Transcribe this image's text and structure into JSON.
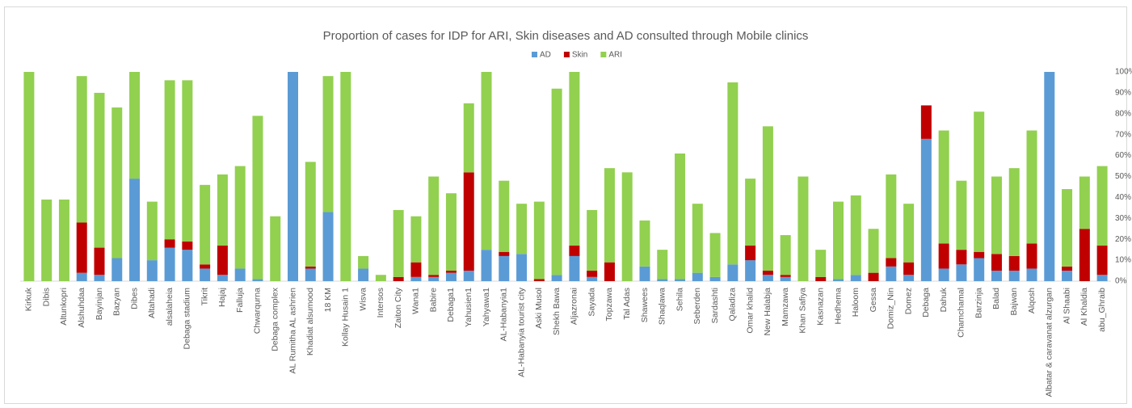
{
  "chart_data": {
    "type": "stacked_bar",
    "title": "Proportion of cases for IDP for ARI, Skin diseases and AD consulted through Mobile clinics",
    "categories": [
      "Kirkuk",
      "Dibis",
      "Altunkopri",
      "Alshuhdaa",
      "Bayinjan",
      "Bazyan",
      "Dibes",
      "Altahadi",
      "alsalaheia",
      "Debaga stadium",
      "Tikrit",
      "Hajaj",
      "Falluja",
      "Chwarqurna",
      "Debaga complex",
      "AL Rumitha AL ashrien",
      "Khadiat alsumood",
      "18 KM",
      "Kollay Husain 1",
      "Wisva",
      "Intersos",
      "Zaiton City",
      "Wana1",
      "Babire",
      "Debaga1",
      "Yahusien1",
      "Yahyawa1",
      "AL-Habanyia1",
      "AL-Habanyia tourist city",
      "Aski Musol",
      "Shekh Bawa",
      "Aljazronai",
      "Sayada",
      "Topzawa",
      "Tal Adas",
      "Shawees",
      "Shaqlawa",
      "Sehila",
      "Seberden",
      "Sardashti",
      "Qaladiza",
      "Omar khalid",
      "New Halabja",
      "Mamzawa",
      "Khan Safiya",
      "Kasnazan",
      "Hedhema",
      "Haloom",
      "Gessa",
      "Domiz_Nin",
      "Domez",
      "Debaga",
      "Dahuk",
      "Chamchamal",
      "Barzinja",
      "Balad",
      "Bajwan",
      "Alqosh",
      "Albatar & caravanat alzurgan",
      "Al Shaabi",
      "Al Khaldia",
      "abu_Ghraib"
    ],
    "series": [
      {
        "name": "AD",
        "color": "#5b9bd5",
        "values": [
          0,
          0,
          0,
          4,
          3,
          11,
          49,
          10,
          16,
          15,
          6,
          3,
          6,
          1,
          0,
          100,
          6,
          33,
          0,
          6,
          0,
          0,
          2,
          2,
          4,
          5,
          15,
          12,
          13,
          0,
          3,
          12,
          2,
          0,
          0,
          7,
          1,
          1,
          4,
          2,
          8,
          10,
          3,
          2,
          0,
          0,
          1,
          3,
          0,
          7,
          3,
          68,
          6,
          8,
          11,
          5,
          5,
          6,
          100,
          5,
          0,
          3
        ]
      },
      {
        "name": "Skin",
        "color": "#c00000",
        "values": [
          0,
          0,
          0,
          24,
          13,
          0,
          0,
          0,
          4,
          4,
          2,
          14,
          0,
          0,
          0,
          0,
          1,
          0,
          0,
          0,
          0,
          2,
          7,
          1,
          1,
          47,
          0,
          2,
          0,
          1,
          0,
          5,
          3,
          9,
          0,
          0,
          0,
          0,
          0,
          0,
          0,
          7,
          2,
          1,
          0,
          2,
          0,
          0,
          4,
          4,
          6,
          16,
          12,
          7,
          3,
          8,
          7,
          12,
          0,
          2,
          25,
          14
        ]
      },
      {
        "name": "ARI",
        "color": "#92d050",
        "values": [
          100,
          39,
          39,
          70,
          74,
          72,
          51,
          28,
          76,
          77,
          38,
          34,
          49,
          78,
          31,
          0,
          50,
          65,
          100,
          6,
          3,
          32,
          22,
          47,
          37,
          33,
          85,
          34,
          24,
          37,
          89,
          83,
          29,
          45,
          52,
          22,
          14,
          60,
          33,
          21,
          87,
          32,
          69,
          19,
          50,
          13,
          37,
          38,
          21,
          40,
          28,
          0,
          54,
          33,
          67,
          37,
          42,
          54,
          0,
          37,
          25,
          38
        ]
      }
    ],
    "ylim": [
      0,
      100
    ],
    "yticks": [
      {
        "value": 0,
        "label": "0%"
      },
      {
        "value": 10,
        "label": "10%"
      },
      {
        "value": 20,
        "label": "20%"
      },
      {
        "value": 30,
        "label": "30%"
      },
      {
        "value": 40,
        "label": "40%"
      },
      {
        "value": 50,
        "label": "50%"
      },
      {
        "value": 60,
        "label": "60%"
      },
      {
        "value": 70,
        "label": "70%"
      },
      {
        "value": 80,
        "label": "80%"
      },
      {
        "value": 90,
        "label": "90%"
      },
      {
        "value": 100,
        "label": "100%"
      }
    ],
    "grid": false,
    "legend": "top"
  }
}
